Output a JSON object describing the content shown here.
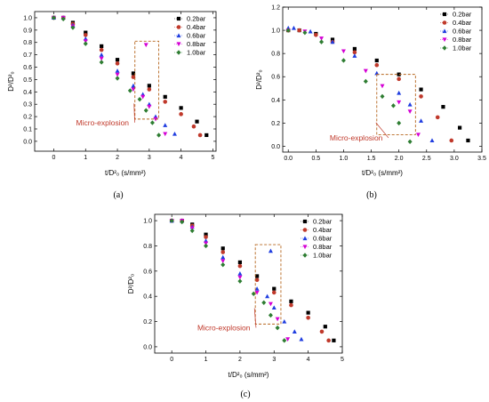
{
  "chart_data": [
    {
      "type": "scatter",
      "panel": "a",
      "caption": "(a)",
      "xlabel": "t/D²₀ (s/mm²)",
      "ylabel": "D²/D²₀",
      "xlim": [
        -0.6,
        5.1
      ],
      "ylim": [
        -0.08,
        1.05
      ],
      "xticks": [
        0,
        1,
        2,
        3,
        4,
        5
      ],
      "yticks": [
        0.0,
        0.1,
        0.2,
        0.3,
        0.4,
        0.5,
        0.6,
        0.7,
        0.8,
        0.9,
        1.0
      ],
      "ytick_format": 1,
      "legend_position": "top-right",
      "series": [
        {
          "name": "0.2bar",
          "color": "#000000",
          "marker": "square",
          "points": [
            [
              0,
              1.0
            ],
            [
              0.3,
              1.0
            ],
            [
              0.6,
              0.96
            ],
            [
              1.0,
              0.88
            ],
            [
              1.5,
              0.77
            ],
            [
              2.0,
              0.66
            ],
            [
              2.5,
              0.55
            ],
            [
              3.0,
              0.45
            ],
            [
              3.5,
              0.36
            ],
            [
              4.0,
              0.27
            ],
            [
              4.5,
              0.16
            ],
            [
              4.8,
              0.05
            ]
          ]
        },
        {
          "name": "0.4bar",
          "color": "#c0392b",
          "marker": "circle",
          "points": [
            [
              0,
              1.0
            ],
            [
              0.3,
              1.0
            ],
            [
              0.6,
              0.95
            ],
            [
              1.0,
              0.86
            ],
            [
              1.5,
              0.74
            ],
            [
              2.0,
              0.63
            ],
            [
              2.5,
              0.52
            ],
            [
              3.0,
              0.42
            ],
            [
              3.5,
              0.32
            ],
            [
              4.0,
              0.22
            ],
            [
              4.4,
              0.12
            ],
            [
              4.6,
              0.05
            ]
          ]
        },
        {
          "name": "0.6bar",
          "color": "#1f3de0",
          "marker": "triangle",
          "points": [
            [
              0,
              1.0
            ],
            [
              0.3,
              1.0
            ],
            [
              0.6,
              0.94
            ],
            [
              1.0,
              0.83
            ],
            [
              1.5,
              0.7
            ],
            [
              2.0,
              0.57
            ],
            [
              2.5,
              0.45
            ],
            [
              2.8,
              0.38
            ],
            [
              3.0,
              0.3
            ],
            [
              3.2,
              0.2
            ],
            [
              3.5,
              0.13
            ],
            [
              3.8,
              0.06
            ]
          ]
        },
        {
          "name": "0.8bar",
          "color": "#d400d4",
          "marker": "triangle-down",
          "points": [
            [
              0,
              1.0
            ],
            [
              0.3,
              1.0
            ],
            [
              0.6,
              0.93
            ],
            [
              1.0,
              0.81
            ],
            [
              1.5,
              0.67
            ],
            [
              2.0,
              0.54
            ],
            [
              2.5,
              0.42
            ],
            [
              2.8,
              0.36
            ],
            [
              2.9,
              0.78
            ],
            [
              3.0,
              0.28
            ],
            [
              3.2,
              0.18
            ],
            [
              3.5,
              0.06
            ]
          ]
        },
        {
          "name": "1.0bar",
          "color": "#2e7d32",
          "marker": "diamond",
          "points": [
            [
              0,
              1.0
            ],
            [
              0.3,
              0.99
            ],
            [
              0.6,
              0.92
            ],
            [
              1.0,
              0.79
            ],
            [
              1.5,
              0.64
            ],
            [
              2.0,
              0.51
            ],
            [
              2.4,
              0.41
            ],
            [
              2.7,
              0.34
            ],
            [
              2.9,
              0.25
            ],
            [
              3.1,
              0.15
            ],
            [
              3.3,
              0.05
            ]
          ]
        }
      ],
      "annotation": {
        "text": "Micro-explosion",
        "box_x": [
          2.55,
          3.3
        ],
        "box_y": [
          0.18,
          0.81
        ],
        "text_x": 0.7,
        "text_y": 0.13
      }
    },
    {
      "type": "scatter",
      "panel": "b",
      "caption": "(b)",
      "xlabel": "t/D²₀ (s/mm²)",
      "ylabel": "D²/D²₀",
      "xlim": [
        -0.1,
        3.5
      ],
      "ylim": [
        -0.05,
        1.2
      ],
      "xticks": [
        0.0,
        0.5,
        1.0,
        1.5,
        2.0,
        2.5,
        3.0,
        3.5
      ],
      "yticks": [
        0.0,
        0.2,
        0.4,
        0.6,
        0.8,
        1.0,
        1.2
      ],
      "ytick_format": 1,
      "legend_position": "top-right",
      "series": [
        {
          "name": "0.2bar",
          "color": "#000000",
          "marker": "square",
          "points": [
            [
              0,
              1.0
            ],
            [
              0.2,
              1.0
            ],
            [
              0.5,
              0.97
            ],
            [
              0.8,
              0.92
            ],
            [
              1.2,
              0.84
            ],
            [
              1.6,
              0.74
            ],
            [
              2.0,
              0.62
            ],
            [
              2.4,
              0.49
            ],
            [
              2.8,
              0.34
            ],
            [
              3.1,
              0.16
            ],
            [
              3.25,
              0.05
            ]
          ]
        },
        {
          "name": "0.4bar",
          "color": "#c0392b",
          "marker": "circle",
          "points": [
            [
              0,
              1.0
            ],
            [
              0.2,
              1.0
            ],
            [
              0.5,
              0.96
            ],
            [
              0.8,
              0.9
            ],
            [
              1.2,
              0.81
            ],
            [
              1.6,
              0.7
            ],
            [
              2.0,
              0.58
            ],
            [
              2.4,
              0.43
            ],
            [
              2.7,
              0.25
            ],
            [
              2.95,
              0.05
            ]
          ]
        },
        {
          "name": "0.6bar",
          "color": "#1f3de0",
          "marker": "triangle",
          "points": [
            [
              0,
              1.02
            ],
            [
              0.1,
              1.02
            ],
            [
              0.4,
              0.99
            ],
            [
              0.8,
              0.9
            ],
            [
              1.2,
              0.78
            ],
            [
              1.6,
              0.63
            ],
            [
              2.0,
              0.46
            ],
            [
              2.2,
              0.36
            ],
            [
              2.4,
              0.22
            ],
            [
              2.6,
              0.05
            ]
          ]
        },
        {
          "name": "0.8bar",
          "color": "#d400d4",
          "marker": "triangle-down",
          "points": [
            [
              0,
              1.0
            ],
            [
              0.3,
              0.99
            ],
            [
              0.6,
              0.93
            ],
            [
              1.0,
              0.82
            ],
            [
              1.4,
              0.65
            ],
            [
              1.7,
              0.52
            ],
            [
              2.0,
              0.38
            ],
            [
              2.2,
              0.3
            ],
            [
              2.35,
              0.1
            ]
          ]
        },
        {
          "name": "1.0bar",
          "color": "#2e7d32",
          "marker": "diamond",
          "points": [
            [
              0,
              1.0
            ],
            [
              0.3,
              0.98
            ],
            [
              0.6,
              0.9
            ],
            [
              1.0,
              0.74
            ],
            [
              1.4,
              0.56
            ],
            [
              1.7,
              0.43
            ],
            [
              1.9,
              0.35
            ],
            [
              2.0,
              0.2
            ],
            [
              2.2,
              0.04
            ]
          ]
        }
      ],
      "annotation": {
        "text": "Micro-explosion",
        "box_x": [
          1.6,
          2.3
        ],
        "box_y": [
          0.1,
          0.62
        ],
        "text_x": 0.75,
        "text_y": 0.05
      }
    },
    {
      "type": "scatter",
      "panel": "c",
      "caption": "(c)",
      "xlabel": "t/D²₀ (s/mm²)",
      "ylabel": "D²/D²₀",
      "xlim": [
        -0.5,
        5.0
      ],
      "ylim": [
        -0.05,
        1.05
      ],
      "xticks": [
        0,
        1,
        2,
        3,
        4,
        5
      ],
      "yticks": [
        0.0,
        0.2,
        0.4,
        0.6,
        0.8,
        1.0
      ],
      "ytick_format": 1,
      "legend_position": "top-right",
      "series": [
        {
          "name": "0.2bar",
          "color": "#000000",
          "marker": "square",
          "points": [
            [
              0,
              1.0
            ],
            [
              0.3,
              1.0
            ],
            [
              0.6,
              0.97
            ],
            [
              1.0,
              0.89
            ],
            [
              1.5,
              0.78
            ],
            [
              2.0,
              0.67
            ],
            [
              2.5,
              0.56
            ],
            [
              3.0,
              0.46
            ],
            [
              3.5,
              0.36
            ],
            [
              4.0,
              0.27
            ],
            [
              4.5,
              0.16
            ],
            [
              4.75,
              0.05
            ]
          ]
        },
        {
          "name": "0.4bar",
          "color": "#c0392b",
          "marker": "circle",
          "points": [
            [
              0,
              1.0
            ],
            [
              0.3,
              1.0
            ],
            [
              0.6,
              0.96
            ],
            [
              1.0,
              0.87
            ],
            [
              1.5,
              0.75
            ],
            [
              2.0,
              0.64
            ],
            [
              2.5,
              0.53
            ],
            [
              3.0,
              0.43
            ],
            [
              3.5,
              0.33
            ],
            [
              4.0,
              0.23
            ],
            [
              4.4,
              0.12
            ],
            [
              4.6,
              0.05
            ]
          ]
        },
        {
          "name": "0.6bar",
          "color": "#1f3de0",
          "marker": "triangle",
          "points": [
            [
              0,
              1.0
            ],
            [
              0.3,
              1.0
            ],
            [
              0.6,
              0.95
            ],
            [
              1.0,
              0.84
            ],
            [
              1.5,
              0.71
            ],
            [
              2.0,
              0.58
            ],
            [
              2.5,
              0.46
            ],
            [
              2.8,
              0.4
            ],
            [
              2.9,
              0.76
            ],
            [
              3.0,
              0.31
            ],
            [
              3.3,
              0.2
            ],
            [
              3.6,
              0.12
            ],
            [
              3.8,
              0.06
            ]
          ]
        },
        {
          "name": "0.8bar",
          "color": "#d400d4",
          "marker": "triangle-down",
          "points": [
            [
              0,
              1.0
            ],
            [
              0.3,
              1.0
            ],
            [
              0.6,
              0.94
            ],
            [
              1.0,
              0.82
            ],
            [
              1.5,
              0.68
            ],
            [
              2.0,
              0.55
            ],
            [
              2.5,
              0.43
            ],
            [
              2.9,
              0.34
            ],
            [
              3.1,
              0.22
            ],
            [
              3.4,
              0.06
            ]
          ]
        },
        {
          "name": "1.0bar",
          "color": "#2e7d32",
          "marker": "diamond",
          "points": [
            [
              0,
              1.0
            ],
            [
              0.3,
              0.99
            ],
            [
              0.6,
              0.92
            ],
            [
              1.0,
              0.8
            ],
            [
              1.5,
              0.65
            ],
            [
              2.0,
              0.52
            ],
            [
              2.4,
              0.42
            ],
            [
              2.7,
              0.35
            ],
            [
              2.9,
              0.25
            ],
            [
              3.1,
              0.15
            ],
            [
              3.3,
              0.05
            ]
          ]
        }
      ],
      "annotation": {
        "text": "Micro-explosion",
        "box_x": [
          2.45,
          3.2
        ],
        "box_y": [
          0.18,
          0.81
        ],
        "text_x": 0.75,
        "text_y": 0.13
      }
    }
  ]
}
